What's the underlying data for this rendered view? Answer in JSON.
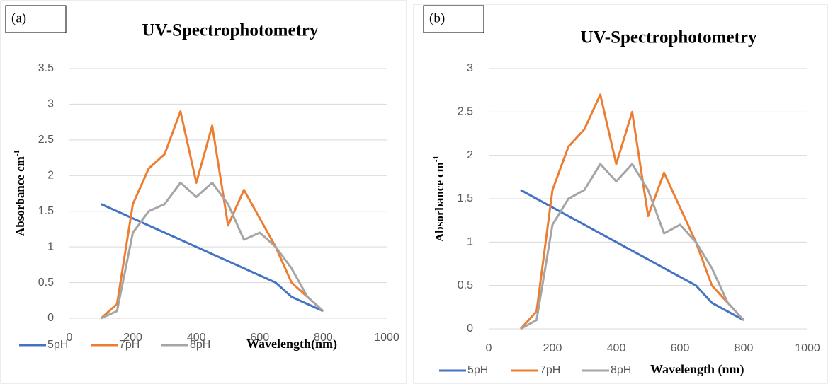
{
  "chart_data": [
    {
      "type": "line",
      "label": "(a)",
      "title": "UV-Spectrophotometry",
      "ylabel": "Absorbance cm",
      "ylabel_superscript": "-1",
      "xlabel": "Wavelength(nm)",
      "x": [
        100,
        150,
        200,
        250,
        300,
        350,
        400,
        450,
        500,
        550,
        600,
        650,
        700,
        750,
        800
      ],
      "xlim": [
        0,
        1000
      ],
      "xticks": [
        0,
        200,
        400,
        600,
        800,
        1000
      ],
      "ylim": [
        0,
        3.5
      ],
      "yticks": [
        0,
        0.5,
        1,
        1.5,
        2,
        2.5,
        3,
        3.5
      ],
      "grid": true,
      "legend": "bottom",
      "series": [
        {
          "name": "5pH",
          "color": "#4472c4",
          "values": [
            1.6,
            1.5,
            1.4,
            1.3,
            1.2,
            1.1,
            1.0,
            0.9,
            0.8,
            0.7,
            0.6,
            0.5,
            0.3,
            0.2,
            0.1
          ]
        },
        {
          "name": "7pH",
          "color": "#ed7d31",
          "values": [
            0,
            0.2,
            1.6,
            2.1,
            2.3,
            2.9,
            1.9,
            2.7,
            1.3,
            1.8,
            1.4,
            1.0,
            0.5,
            0.3,
            0.1
          ]
        },
        {
          "name": "8pH",
          "color": "#a5a5a5",
          "values": [
            0,
            0.1,
            1.2,
            1.5,
            1.6,
            1.9,
            1.7,
            1.9,
            1.6,
            1.1,
            1.2,
            1.0,
            0.7,
            0.3,
            0.1
          ]
        }
      ]
    },
    {
      "type": "line",
      "label": "(b)",
      "title": "UV-Spectrophotometry",
      "ylabel": "Absorbance cm",
      "ylabel_superscript": "-1",
      "xlabel": "Wavelength (nm)",
      "x": [
        100,
        150,
        200,
        250,
        300,
        350,
        400,
        450,
        500,
        550,
        600,
        650,
        700,
        750,
        800
      ],
      "xlim": [
        0,
        1000
      ],
      "xticks": [
        0,
        200,
        400,
        600,
        800,
        1000
      ],
      "ylim": [
        0,
        3
      ],
      "yticks": [
        0,
        0.5,
        1,
        1.5,
        2,
        2.5,
        3
      ],
      "grid": true,
      "legend": "bottom",
      "series": [
        {
          "name": "5pH",
          "color": "#4472c4",
          "values": [
            1.6,
            1.5,
            1.4,
            1.3,
            1.2,
            1.1,
            1.0,
            0.9,
            0.8,
            0.7,
            0.6,
            0.5,
            0.3,
            0.2,
            0.1
          ]
        },
        {
          "name": "7pH",
          "color": "#ed7d31",
          "values": [
            0,
            0.2,
            1.6,
            2.1,
            2.3,
            2.7,
            1.9,
            2.5,
            1.3,
            1.8,
            1.4,
            1.0,
            0.5,
            0.3,
            0.1
          ]
        },
        {
          "name": "8pH",
          "color": "#a5a5a5",
          "values": [
            0,
            0.1,
            1.2,
            1.5,
            1.6,
            1.9,
            1.7,
            1.9,
            1.6,
            1.1,
            1.2,
            1.0,
            0.7,
            0.3,
            0.1
          ]
        }
      ]
    }
  ]
}
